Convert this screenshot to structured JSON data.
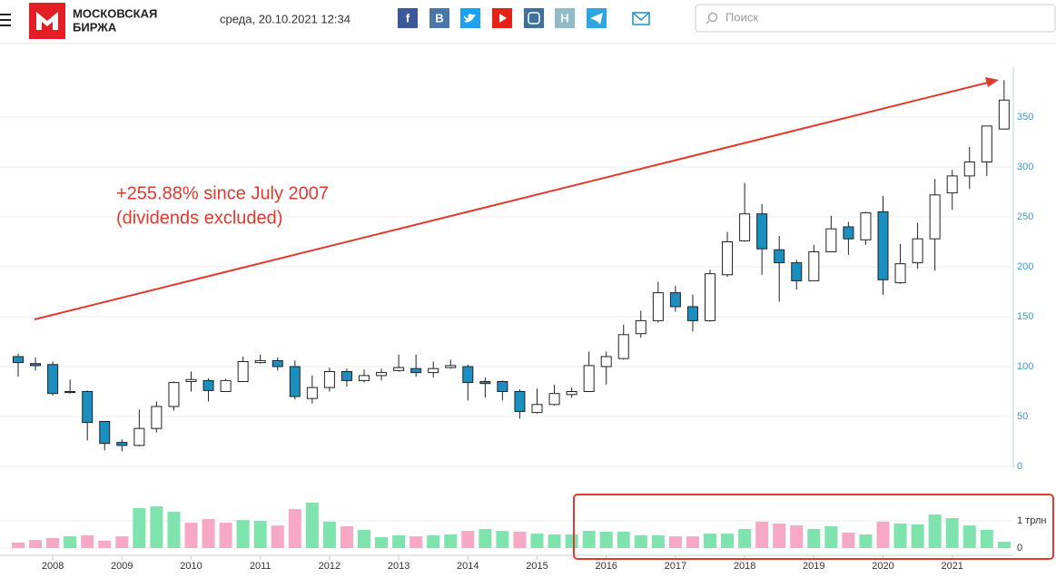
{
  "header": {
    "logo_line1": "МОСКОВСКАЯ",
    "logo_line2": "БИРЖА",
    "datetime": "среда, 20.10.2021 12:34",
    "social_labels": [
      "f",
      "В",
      "Н"
    ],
    "search_placeholder": "Поиск"
  },
  "chart_data": {
    "type": "candlestick",
    "annotation": [
      "+255.88% since July 2007",
      "(dividends excluded)"
    ],
    "categories": [
      null,
      null,
      "2008",
      null,
      null,
      null,
      "2009",
      null,
      null,
      null,
      "2010",
      null,
      null,
      null,
      "2011",
      null,
      null,
      null,
      "2012",
      null,
      null,
      null,
      "2013",
      null,
      null,
      null,
      "2014",
      null,
      null,
      null,
      "2015",
      null,
      null,
      null,
      "2016",
      null,
      null,
      null,
      "2017",
      null,
      null,
      null,
      "2018",
      null,
      null,
      null,
      "2019",
      null,
      null,
      null,
      "2020",
      null,
      null,
      null,
      "2021",
      null,
      null,
      null
    ],
    "open": [
      110,
      103,
      102,
      75,
      75,
      45,
      24,
      21,
      38,
      60,
      85,
      86,
      75,
      85,
      104,
      106,
      100,
      68,
      79,
      95,
      86,
      91,
      96,
      98,
      94,
      99,
      100,
      85,
      85,
      75,
      54,
      62,
      72,
      75,
      100,
      108,
      133,
      146,
      174,
      160,
      146,
      192,
      226,
      253,
      217,
      204,
      186,
      215,
      240,
      227,
      255,
      184,
      204,
      228,
      274,
      291,
      305,
      338
    ],
    "high": [
      113,
      109,
      105,
      87,
      76,
      45,
      27,
      57,
      65,
      85,
      95,
      88,
      88,
      110,
      112,
      109,
      106,
      91,
      99,
      98,
      97,
      98,
      112,
      112,
      105,
      107,
      102,
      89,
      86,
      77,
      78,
      82,
      79,
      115,
      115,
      142,
      156,
      185,
      181,
      172,
      197,
      235,
      284,
      263,
      231,
      207,
      222,
      251,
      245,
      255,
      271,
      223,
      244,
      288,
      297,
      320,
      341,
      387
    ],
    "low": [
      90,
      96,
      71,
      73,
      26,
      16,
      15,
      20,
      34,
      56,
      75,
      65,
      75,
      85,
      103,
      96,
      67,
      63,
      75,
      80,
      84,
      86,
      95,
      90,
      89,
      98,
      66,
      69,
      66,
      48,
      53,
      61,
      69,
      75,
      82,
      107,
      129,
      144,
      155,
      135,
      145,
      190,
      225,
      192,
      165,
      177,
      186,
      215,
      212,
      222,
      172,
      183,
      198,
      196,
      257,
      278,
      291,
      338
    ],
    "close": [
      104,
      101,
      73,
      74,
      44,
      23,
      21,
      38,
      60,
      84,
      87,
      76,
      86,
      105,
      106,
      100,
      70,
      79,
      95,
      86,
      91,
      94,
      99,
      94,
      98,
      101,
      84,
      83,
      75,
      55,
      62,
      73,
      75,
      101,
      110,
      132,
      146,
      174,
      160,
      146,
      193,
      225,
      253,
      218,
      204,
      186,
      215,
      238,
      228,
      254,
      187,
      203,
      228,
      272,
      291,
      305,
      341,
      367
    ],
    "up_color": "#ffffff",
    "down_color": "#1a8fc0",
    "ylim": [
      0,
      400
    ],
    "yticks": [
      0,
      50,
      100,
      150,
      200,
      250,
      300,
      350
    ],
    "grid": true,
    "volume": [
      0.2,
      0.3,
      0.37,
      0.43,
      0.47,
      0.27,
      0.43,
      1.47,
      1.53,
      1.33,
      0.93,
      1.07,
      0.93,
      1.03,
      1.0,
      0.83,
      1.43,
      1.67,
      0.97,
      0.8,
      0.67,
      0.4,
      0.47,
      0.43,
      0.47,
      0.5,
      0.63,
      0.7,
      0.63,
      0.6,
      0.53,
      0.5,
      0.5,
      0.63,
      0.6,
      0.6,
      0.47,
      0.47,
      0.43,
      0.43,
      0.53,
      0.53,
      0.7,
      0.97,
      0.9,
      0.83,
      0.7,
      0.8,
      0.57,
      0.5,
      0.97,
      0.9,
      0.87,
      1.23,
      1.1,
      0.83,
      0.67,
      0.23
    ],
    "volume_colors": [
      "p",
      "p",
      "p",
      "g",
      "p",
      "p",
      "p",
      "g",
      "g",
      "g",
      "p",
      "p",
      "p",
      "g",
      "g",
      "p",
      "p",
      "g",
      "g",
      "p",
      "g",
      "g",
      "g",
      "p",
      "g",
      "g",
      "p",
      "g",
      "g",
      "p",
      "g",
      "g",
      "g",
      "g",
      "g",
      "g",
      "g",
      "g",
      "p",
      "p",
      "g",
      "g",
      "g",
      "p",
      "p",
      "p",
      "g",
      "g",
      "p",
      "g",
      "p",
      "g",
      "g",
      "g",
      "g",
      "g",
      "g",
      "g"
    ],
    "volume_palette": {
      "p": "#f7a8c4",
      "g": "#7ee3ad"
    },
    "volume_ylim": [
      0,
      2
    ],
    "volume_yticks": [
      0,
      {
        "value": 1,
        "label": "1 трлн"
      }
    ]
  }
}
